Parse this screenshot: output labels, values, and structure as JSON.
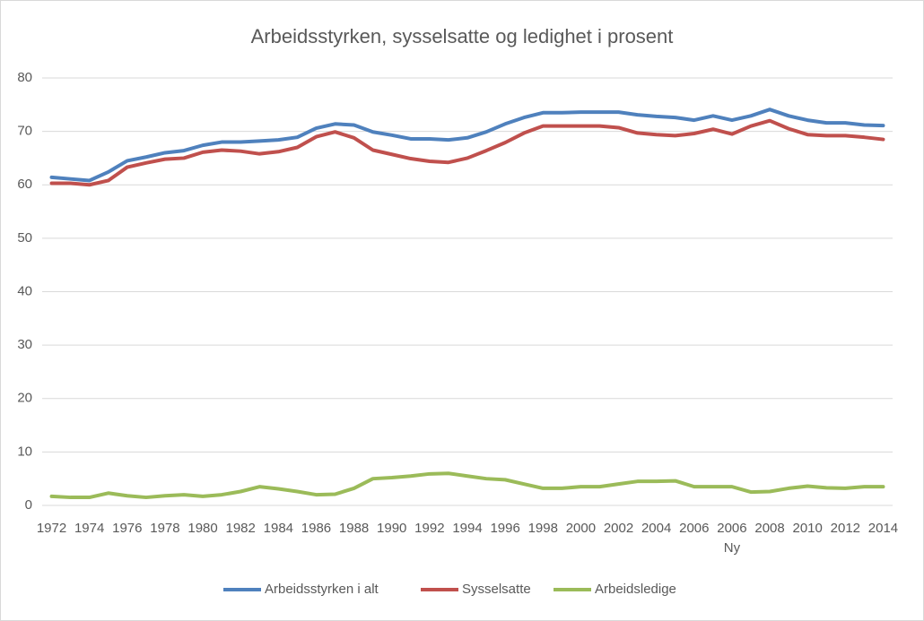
{
  "chart_data": {
    "type": "line",
    "title": "Arbeidsstyrken, sysselsatte og ledighet i prosent",
    "categories": [
      "1972",
      null,
      "1974",
      null,
      "1976",
      null,
      "1978",
      null,
      "1980",
      null,
      "1982",
      null,
      "1984",
      null,
      "1986",
      null,
      "1988",
      null,
      "1990",
      null,
      "1992",
      null,
      "1994",
      null,
      "1996",
      null,
      "1998",
      null,
      "2000",
      null,
      "2002",
      null,
      "2004",
      null,
      "2006",
      null,
      "2006\nNy",
      null,
      "2008",
      null,
      "2010",
      null,
      "2012",
      null,
      "2014"
    ],
    "series": [
      {
        "name": "Arbeidsstyrken i alt",
        "color": "#4f81bd",
        "values": [
          61.4,
          61.1,
          60.8,
          62.4,
          64.5,
          65.2,
          66.0,
          66.4,
          67.4,
          68.0,
          68.0,
          68.2,
          68.4,
          68.9,
          70.6,
          71.4,
          71.2,
          69.9,
          69.3,
          68.6,
          68.6,
          68.4,
          68.8,
          69.9,
          71.4,
          72.6,
          73.5,
          73.5,
          73.6,
          73.6,
          73.6,
          73.1,
          72.8,
          72.6,
          72.1,
          72.9,
          72.1,
          72.9,
          74.1,
          72.9,
          72.1,
          71.6,
          71.6,
          71.2,
          71.1
        ]
      },
      {
        "name": "Sysselsatte",
        "color": "#c0504d",
        "values": [
          60.3,
          60.3,
          60.0,
          60.8,
          63.3,
          64.1,
          64.8,
          65.0,
          66.1,
          66.5,
          66.3,
          65.8,
          66.2,
          67.0,
          69.0,
          69.9,
          68.8,
          66.5,
          65.7,
          64.9,
          64.4,
          64.2,
          65.0,
          66.4,
          67.9,
          69.7,
          71.0,
          71.0,
          71.0,
          71.0,
          70.7,
          69.7,
          69.4,
          69.2,
          69.6,
          70.4,
          69.5,
          71.0,
          72.0,
          70.5,
          69.4,
          69.2,
          69.2,
          68.9,
          68.5
        ]
      },
      {
        "name": "Arbeidsledige",
        "color": "#9bbb59",
        "values": [
          1.7,
          1.5,
          1.5,
          2.3,
          1.8,
          1.5,
          1.8,
          2.0,
          1.7,
          2.0,
          2.6,
          3.5,
          3.1,
          2.6,
          2.0,
          2.1,
          3.2,
          5.0,
          5.2,
          5.5,
          5.9,
          6.0,
          5.5,
          5.0,
          4.8,
          4.0,
          3.2,
          3.2,
          3.5,
          3.5,
          4.0,
          4.5,
          4.5,
          4.6,
          3.5,
          3.5,
          3.5,
          2.5,
          2.6,
          3.2,
          3.6,
          3.3,
          3.2,
          3.5,
          3.5
        ]
      }
    ],
    "ylim": [
      0,
      80
    ],
    "yticks": [
      0,
      10,
      20,
      30,
      40,
      50,
      60,
      70,
      80
    ],
    "grid": true,
    "legend": "bottom"
  }
}
